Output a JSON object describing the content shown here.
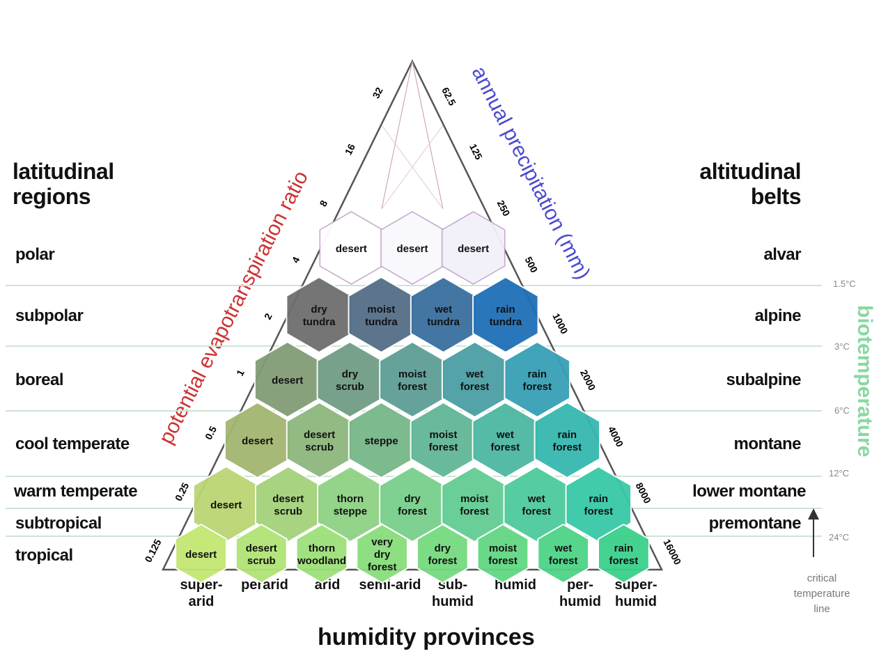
{
  "latitudinal_header": [
    "latitudinal",
    "regions"
  ],
  "altitudinal_header": [
    "altitudinal",
    "belts"
  ],
  "regions": [
    {
      "latitude": "polar",
      "altitude": "alvar"
    },
    {
      "latitude": "subpolar",
      "altitude": "alpine"
    },
    {
      "latitude": "boreal",
      "altitude": "subalpine"
    },
    {
      "latitude": "cool temperate",
      "altitude": "montane"
    },
    {
      "latitude": "warm temperate",
      "altitude": "lower montane"
    },
    {
      "latitude": "subtropical",
      "altitude": "premontane"
    },
    {
      "latitude": "tropical",
      "altitude": ""
    }
  ],
  "temperature_ticks": [
    "1.5°C",
    "3°C",
    "6°C",
    "12°C",
    "24°C"
  ],
  "humidity_provinces": [
    "super-arid",
    "perarid",
    "arid",
    "semi-arid",
    "sub-humid",
    "humid",
    "per-humid",
    "super-humid"
  ],
  "axis_titles": {
    "bottom": "humidity provinces",
    "left": "potential evapotranspiration ratio",
    "right": "annual precipitation (mm)",
    "temperature": "biotemperature"
  },
  "critical_line": [
    "critical",
    "temperature",
    "line"
  ],
  "left_ticks": [
    "32",
    "16",
    "8",
    "4",
    "2",
    "1",
    "0.5",
    "0.25",
    "0.125"
  ],
  "right_ticks": [
    "62.5",
    "125",
    "250",
    "500",
    "1000",
    "2000",
    "4000",
    "8000",
    "16000"
  ],
  "zone_rows": [
    [
      "dry tundra",
      "moist tundra",
      "wet tundra",
      "rain tundra"
    ],
    [
      "dry scrub",
      "moist forest",
      "wet forest",
      "rain forest"
    ],
    [
      "desert",
      "desert scrub",
      "steppe",
      "moist forest",
      "wet forest",
      "rain forest"
    ],
    [
      "desert",
      "desert scrub",
      "thorn steppe",
      "dry forest",
      "moist forest",
      "wet forest",
      "rain forest"
    ],
    [
      "desert",
      "desert scrub",
      "thorn woodland",
      "very dry forest",
      "dry forest",
      "moist forest",
      "wet forest",
      "rain forest"
    ]
  ],
  "top_row": [
    "desert",
    "desert",
    "desert"
  ],
  "colors": {
    "zone_ramp": [
      "#ffffff",
      "#6b6b6b",
      "#8c8a73",
      "#c2b56a",
      "#e6e06a",
      "#eef07a"
    ],
    "left_axis": "#cc3333",
    "right_axis": "#4a4ad0",
    "biotemperature": "#88d8a0",
    "line": "#555555"
  }
}
